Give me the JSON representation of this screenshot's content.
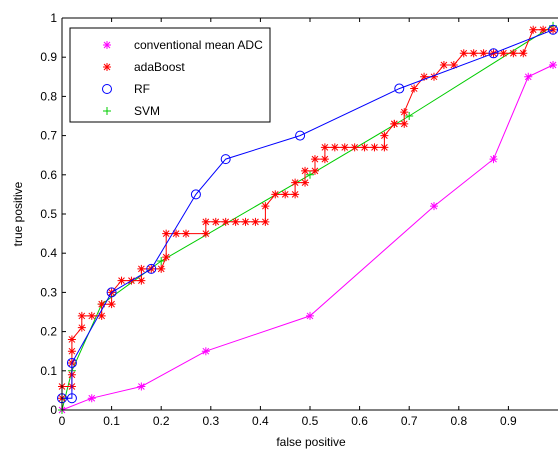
{
  "chart_data": {
    "type": "line",
    "title": "",
    "xlabel": "false positive",
    "ylabel": "true positive",
    "xlim": [
      0,
      1
    ],
    "ylim": [
      0,
      1
    ],
    "xticks": [
      "0",
      "0.1",
      "0.2",
      "0.3",
      "0.4",
      "0.5",
      "0.6",
      "0.7",
      "0.8",
      "0.9"
    ],
    "yticks": [
      "0",
      "0.1",
      "0.2",
      "0.3",
      "0.4",
      "0.5",
      "0.6",
      "0.7",
      "0.8",
      "0.9",
      "1"
    ],
    "grid": false,
    "legend_position": "top-left",
    "series": [
      {
        "name": "conventional mean ADC",
        "color": "#ff00ff",
        "marker": "asterisk",
        "x": [
          0,
          0.06,
          0.16,
          0.29,
          0.5,
          0.75,
          0.87,
          0.94,
          0.99
        ],
        "y": [
          0,
          0.03,
          0.06,
          0.15,
          0.24,
          0.52,
          0.64,
          0.85,
          0.88
        ]
      },
      {
        "name": "adaBoost",
        "color": "#ff0000",
        "marker": "asterisk",
        "x": [
          0,
          0,
          0.02,
          0.02,
          0.02,
          0.02,
          0.02,
          0.04,
          0.04,
          0.06,
          0.08,
          0.08,
          0.1,
          0.1,
          0.12,
          0.14,
          0.16,
          0.16,
          0.18,
          0.2,
          0.21,
          0.21,
          0.23,
          0.25,
          0.29,
          0.29,
          0.31,
          0.33,
          0.35,
          0.37,
          0.39,
          0.41,
          0.41,
          0.43,
          0.45,
          0.47,
          0.47,
          0.49,
          0.49,
          0.51,
          0.51,
          0.53,
          0.53,
          0.55,
          0.57,
          0.59,
          0.61,
          0.63,
          0.65,
          0.65,
          0.67,
          0.67,
          0.69,
          0.69,
          0.71,
          0.73,
          0.75,
          0.77,
          0.79,
          0.81,
          0.83,
          0.85,
          0.87,
          0.89,
          0.91,
          0.93,
          0.95,
          0.97,
          0.99
        ],
        "y": [
          0.03,
          0.06,
          0.06,
          0.09,
          0.12,
          0.15,
          0.18,
          0.21,
          0.24,
          0.24,
          0.24,
          0.27,
          0.27,
          0.3,
          0.33,
          0.33,
          0.33,
          0.36,
          0.36,
          0.36,
          0.39,
          0.45,
          0.45,
          0.45,
          0.45,
          0.48,
          0.48,
          0.48,
          0.48,
          0.48,
          0.48,
          0.48,
          0.52,
          0.55,
          0.55,
          0.55,
          0.58,
          0.58,
          0.61,
          0.61,
          0.64,
          0.64,
          0.67,
          0.67,
          0.67,
          0.67,
          0.67,
          0.67,
          0.67,
          0.7,
          0.73,
          0.73,
          0.73,
          0.76,
          0.82,
          0.85,
          0.85,
          0.88,
          0.88,
          0.91,
          0.91,
          0.91,
          0.91,
          0.91,
          0.91,
          0.91,
          0.97,
          0.97,
          0.97
        ]
      },
      {
        "name": "RF",
        "color": "#0000ff",
        "marker": "circle",
        "x": [
          0,
          0.02,
          0.02,
          0.1,
          0.18,
          0.27,
          0.33,
          0.48,
          0.68,
          0.87,
          0.99
        ],
        "y": [
          0.03,
          0.03,
          0.12,
          0.3,
          0.36,
          0.55,
          0.64,
          0.7,
          0.82,
          0.91,
          0.97
        ]
      },
      {
        "name": "SVM",
        "color": "#00cc00",
        "marker": "plus",
        "x": [
          0,
          0.02,
          0.08,
          0.2,
          0.5,
          0.7,
          0.99
        ],
        "y": [
          0,
          0.1,
          0.27,
          0.38,
          0.6,
          0.75,
          0.98
        ]
      }
    ]
  }
}
